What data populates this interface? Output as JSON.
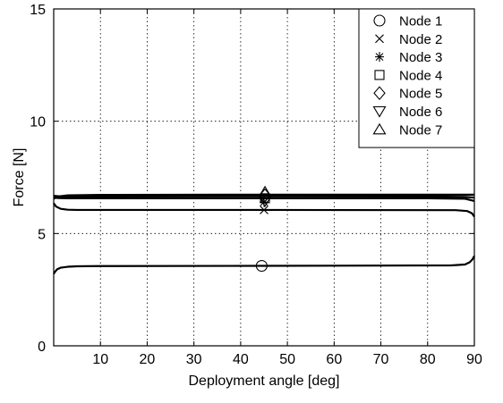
{
  "chart_data": {
    "type": "line",
    "xlabel": "Deployment angle [deg]",
    "ylabel": "Force [N]",
    "xlim": [
      0,
      90
    ],
    "ylim": [
      0,
      15
    ],
    "x_ticks": [
      10,
      20,
      30,
      40,
      50,
      60,
      70,
      80,
      90
    ],
    "y_ticks": [
      0,
      5,
      10,
      15
    ],
    "grid": true,
    "legend_position": "top-right",
    "legend": [
      {
        "label": "Node 1",
        "marker": "circle"
      },
      {
        "label": "Node 2",
        "marker": "x"
      },
      {
        "label": "Node 3",
        "marker": "asterisk"
      },
      {
        "label": "Node 4",
        "marker": "square"
      },
      {
        "label": "Node 5",
        "marker": "diamond"
      },
      {
        "label": "Node 6",
        "marker": "triangle-down"
      },
      {
        "label": "Node 7",
        "marker": "triangle-up"
      }
    ],
    "curves": [
      {
        "x": [
          0,
          0.3,
          0.7,
          1.5,
          3,
          5,
          10,
          45,
          85,
          88,
          89,
          89.6,
          90
        ],
        "y": [
          3.2,
          3.3,
          3.4,
          3.48,
          3.52,
          3.54,
          3.55,
          3.56,
          3.58,
          3.62,
          3.72,
          3.85,
          4.0
        ]
      },
      {
        "x": [
          0,
          0.5,
          1.5,
          3,
          5,
          45,
          86,
          88.5,
          89.5,
          90
        ],
        "y": [
          6.35,
          6.2,
          6.1,
          6.06,
          6.05,
          6.05,
          6.04,
          6.0,
          5.9,
          5.75
        ]
      },
      {
        "x": [
          0,
          1,
          3,
          10,
          45,
          80,
          88,
          90
        ],
        "y": [
          6.6,
          6.58,
          6.57,
          6.57,
          6.57,
          6.57,
          6.55,
          6.45
        ]
      },
      {
        "x": [
          0,
          1,
          3,
          10,
          45,
          80,
          88,
          90
        ],
        "y": [
          6.68,
          6.66,
          6.65,
          6.65,
          6.66,
          6.65,
          6.63,
          6.6
        ]
      },
      {
        "x": [
          0,
          1,
          3,
          10,
          45,
          80,
          88,
          90
        ],
        "y": [
          6.55,
          6.65,
          6.7,
          6.72,
          6.73,
          6.73,
          6.73,
          6.73
        ]
      }
    ],
    "markers": [
      {
        "node": "Node 1",
        "marker": "circle",
        "x": 44.5,
        "y": 3.56
      },
      {
        "node": "Node 2",
        "marker": "x",
        "x": 45,
        "y": 6.05
      },
      {
        "node": "Node 3",
        "marker": "asterisk",
        "x": 45,
        "y": 6.4
      },
      {
        "node": "Node 4",
        "marker": "square",
        "x": 45.2,
        "y": 6.57
      },
      {
        "node": "Node 5",
        "marker": "diamond",
        "x": 45.2,
        "y": 6.7
      },
      {
        "node": "Node 6",
        "marker": "triangle-down",
        "x": 45.2,
        "y": 6.45
      },
      {
        "node": "Node 7",
        "marker": "triangle-up",
        "x": 45.2,
        "y": 6.85
      }
    ]
  }
}
